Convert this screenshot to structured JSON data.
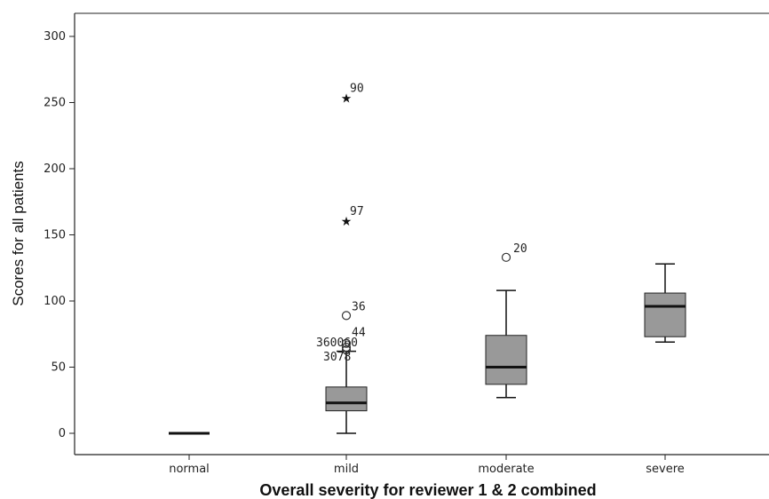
{
  "chart_data": {
    "type": "boxplot",
    "xlabel": "Overall severity for reviewer 1 & 2 combined",
    "ylabel": "Scores for all patients",
    "ylim": [
      -16,
      315
    ],
    "yticks": [
      0,
      50,
      100,
      150,
      200,
      250,
      300
    ],
    "ytick_labels": [
      "0",
      "50",
      "100",
      "150",
      "200",
      "250",
      "300"
    ],
    "grid": false,
    "legend": "none",
    "box_color": "#999999",
    "categories": [
      "normal",
      "mild",
      "moderate",
      "severe"
    ],
    "boxes": [
      {
        "category": "normal",
        "min": 0,
        "q1": 0,
        "median": 0,
        "q3": 0,
        "max": 0,
        "outliers": []
      },
      {
        "category": "mild",
        "min": 0,
        "q1": 17,
        "median": 23,
        "q3": 35,
        "max": 62,
        "outliers": [
          {
            "value": 254,
            "marker": "star",
            "label": "90"
          },
          {
            "value": 161,
            "marker": "star",
            "label": "97"
          },
          {
            "value": 89,
            "marker": "circle",
            "label": "36"
          },
          {
            "value": 68,
            "marker": "circle",
            "label": "44"
          },
          {
            "value": 65,
            "marker": "circle",
            "label": "360060"
          },
          {
            "value": 63,
            "marker": "circle",
            "label": "3078"
          }
        ]
      },
      {
        "category": "moderate",
        "min": 27,
        "q1": 37,
        "median": 50,
        "q3": 74,
        "max": 108,
        "outliers": [
          {
            "value": 133,
            "marker": "circle",
            "label": "20"
          }
        ]
      },
      {
        "category": "severe",
        "min": 69,
        "q1": 73,
        "median": 96,
        "q3": 106,
        "max": 128,
        "outliers": []
      }
    ]
  }
}
